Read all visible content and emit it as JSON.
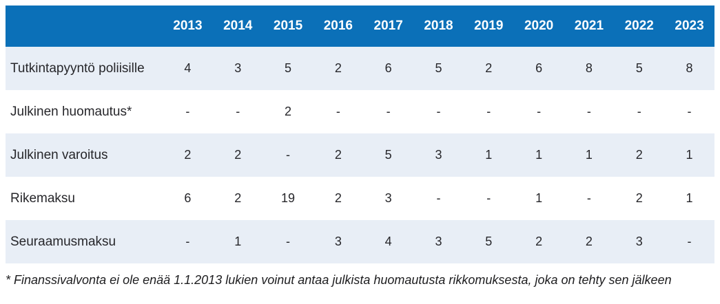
{
  "chart_data": {
    "type": "table",
    "title": "",
    "categories": [
      "2013",
      "2014",
      "2015",
      "2016",
      "2017",
      "2018",
      "2019",
      "2020",
      "2021",
      "2022",
      "2023"
    ],
    "series": [
      {
        "name": "Tutkintapyyntö poliisille",
        "values": [
          4,
          3,
          5,
          2,
          6,
          5,
          2,
          6,
          8,
          5,
          8
        ]
      },
      {
        "name": "Julkinen huomautus*",
        "values": [
          null,
          null,
          2,
          null,
          null,
          null,
          null,
          null,
          null,
          null,
          null
        ]
      },
      {
        "name": "Julkinen varoitus",
        "values": [
          2,
          2,
          null,
          2,
          5,
          3,
          1,
          1,
          1,
          2,
          1
        ]
      },
      {
        "name": "Rikemaksu",
        "values": [
          6,
          2,
          19,
          2,
          3,
          null,
          null,
          1,
          null,
          2,
          1
        ]
      },
      {
        "name": "Seuraamusmaksu",
        "values": [
          null,
          1,
          null,
          3,
          4,
          3,
          5,
          2,
          2,
          3,
          null
        ]
      }
    ],
    "missing_marker": "-",
    "layout": {
      "header_position": "top",
      "striped": true,
      "first_stripe_row": 0
    }
  },
  "table": {
    "header": {
      "corner": "",
      "years": [
        "2013",
        "2014",
        "2015",
        "2016",
        "2017",
        "2018",
        "2019",
        "2020",
        "2021",
        "2022",
        "2023"
      ]
    },
    "rows": [
      {
        "label": "Tutkintapyyntö poliisille",
        "cells": [
          "4",
          "3",
          "5",
          "2",
          "6",
          "5",
          "2",
          "6",
          "8",
          "5",
          "8"
        ]
      },
      {
        "label": "Julkinen huomautus*",
        "cells": [
          "-",
          "-",
          "2",
          "-",
          "-",
          "-",
          "-",
          "-",
          "-",
          "-",
          "-"
        ]
      },
      {
        "label": "Julkinen varoitus",
        "cells": [
          "2",
          "2",
          "-",
          "2",
          "5",
          "3",
          "1",
          "1",
          "1",
          "2",
          "1"
        ]
      },
      {
        "label": "Rikemaksu",
        "cells": [
          "6",
          "2",
          "19",
          "2",
          "3",
          "-",
          "-",
          "1",
          "-",
          "2",
          "1"
        ]
      },
      {
        "label": "Seuraamusmaksu",
        "cells": [
          "-",
          "1",
          "-",
          "3",
          "4",
          "3",
          "5",
          "2",
          "2",
          "3",
          "-"
        ]
      }
    ]
  },
  "footnote": "* Finanssivalvonta ei ole enää 1.1.2013 lukien voinut antaa julkista huomautusta rikkomuksesta, joka on tehty sen jälkeen",
  "colors": {
    "header_bg": "#0b70b8",
    "header_text": "#ffffff",
    "stripe_bg": "#e8eef6",
    "plain_bg": "#ffffff",
    "body_text": "#26262a"
  }
}
